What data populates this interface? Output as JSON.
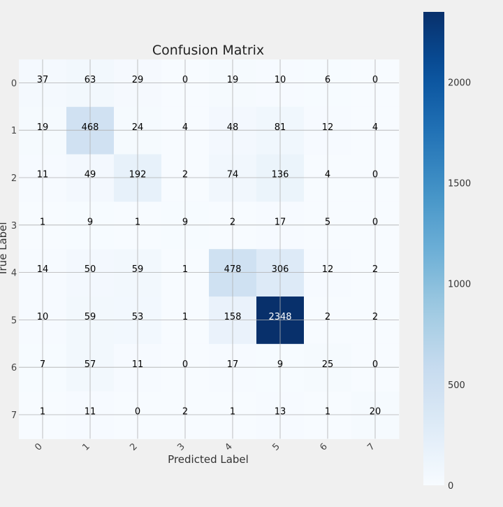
{
  "chart_data": {
    "type": "heatmap",
    "title": "Confusion Matrix",
    "xlabel": "Predicted Label",
    "ylabel": "True Label",
    "x_categories": [
      "0",
      "1",
      "2",
      "3",
      "4",
      "5",
      "6",
      "7"
    ],
    "y_categories": [
      "0",
      "1",
      "2",
      "3",
      "4",
      "5",
      "6",
      "7"
    ],
    "matrix": [
      [
        37,
        63,
        29,
        0,
        19,
        10,
        6,
        0
      ],
      [
        19,
        468,
        24,
        4,
        48,
        81,
        12,
        4
      ],
      [
        11,
        49,
        192,
        2,
        74,
        136,
        4,
        0
      ],
      [
        1,
        9,
        1,
        9,
        2,
        17,
        5,
        0
      ],
      [
        14,
        50,
        59,
        1,
        478,
        306,
        12,
        2
      ],
      [
        10,
        59,
        53,
        1,
        158,
        2348,
        2,
        2
      ],
      [
        7,
        57,
        11,
        0,
        17,
        9,
        25,
        0
      ],
      [
        1,
        11,
        0,
        2,
        1,
        13,
        1,
        20
      ]
    ],
    "colormap": "Blues",
    "vmin": 0,
    "vmax": 2348,
    "colorbar_ticks": [
      "0",
      "500",
      "1000",
      "1500",
      "2000"
    ],
    "grid": true,
    "colors": {
      "background": "#f0f0f0",
      "grid": "#b0b0b0",
      "low": "#f7fbff",
      "high": "#08306b"
    }
  }
}
